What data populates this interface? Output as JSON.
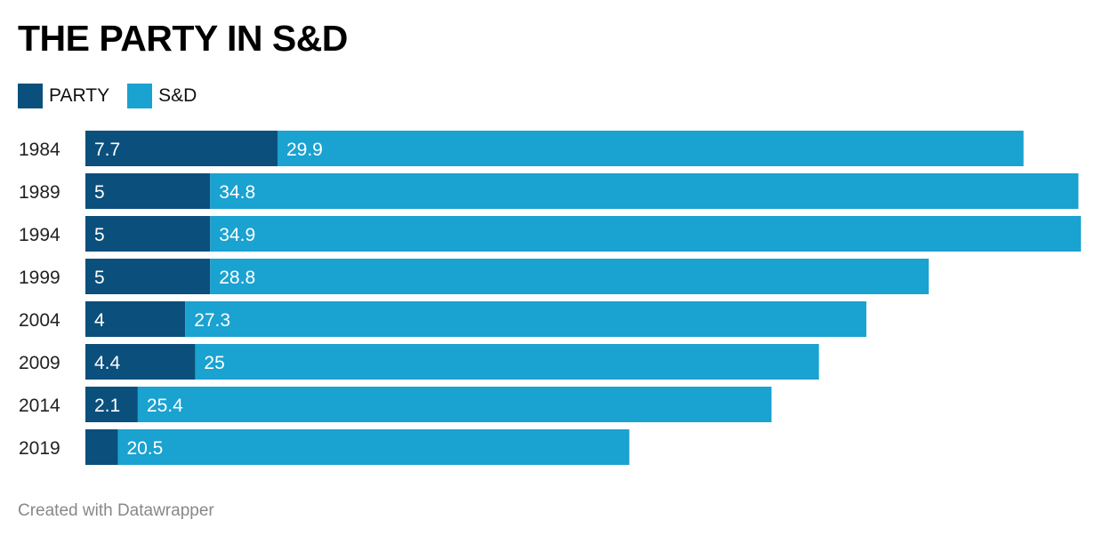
{
  "chart_data": {
    "type": "bar",
    "orientation": "horizontal",
    "stacked": true,
    "title": "THE PARTY IN S&D",
    "categories": [
      "1984",
      "1989",
      "1994",
      "1999",
      "2004",
      "2009",
      "2014",
      "2019"
    ],
    "series": [
      {
        "name": "PARTY",
        "color": "#0b4f7c",
        "values": [
          7.7,
          5,
          5,
          5,
          4,
          4.4,
          2.1,
          1.3
        ]
      },
      {
        "name": "S&D",
        "color": "#1aa2d0",
        "values": [
          29.9,
          34.8,
          34.9,
          28.8,
          27.3,
          25,
          25.4,
          20.5
        ]
      }
    ],
    "data_labels": {
      "PARTY": [
        "7.7",
        "5",
        "5",
        "5",
        "4",
        "4.4",
        "2.1",
        ""
      ],
      "S&D": [
        "29.9",
        "34.8",
        "34.9",
        "28.8",
        "27.3",
        "25",
        "25.4",
        "20.5"
      ]
    },
    "xlim": [
      0,
      40
    ],
    "grid": false,
    "legend_position": "top-left"
  },
  "footer": "Created with Datawrapper"
}
